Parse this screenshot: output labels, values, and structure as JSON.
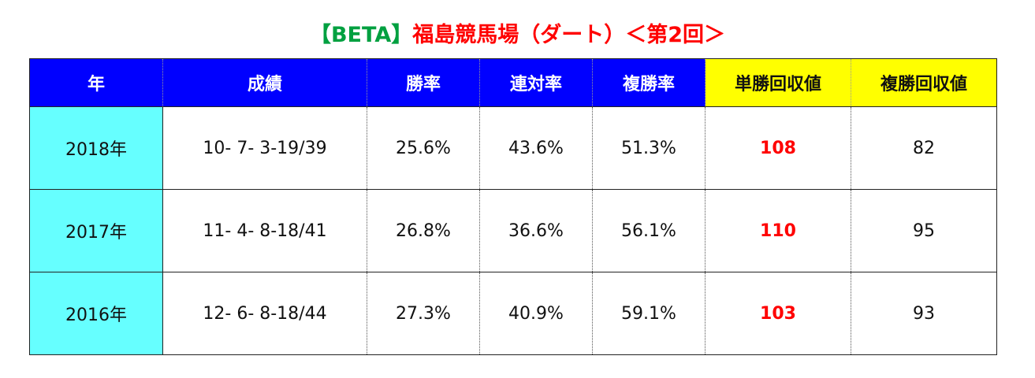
{
  "title": {
    "tag": "【BETA】",
    "text": "福島競馬場（ダート）＜第2回＞"
  },
  "table": {
    "header": [
      "年",
      "成績",
      "勝率",
      "連対率",
      "複勝率",
      "単勝回収値",
      "複勝回収値"
    ],
    "rows": [
      [
        "2018年",
        "10- 7- 3-19/39",
        "25.6%",
        "43.6%",
        "51.3%",
        "108",
        "82"
      ],
      [
        "2017年",
        "11- 4- 8-18/41",
        "26.8%",
        "36.6%",
        "56.1%",
        "110",
        "95"
      ],
      [
        "2016年",
        "12- 6- 8-18/44",
        "27.3%",
        "40.9%",
        "59.1%",
        "103",
        "93"
      ]
    ]
  }
}
